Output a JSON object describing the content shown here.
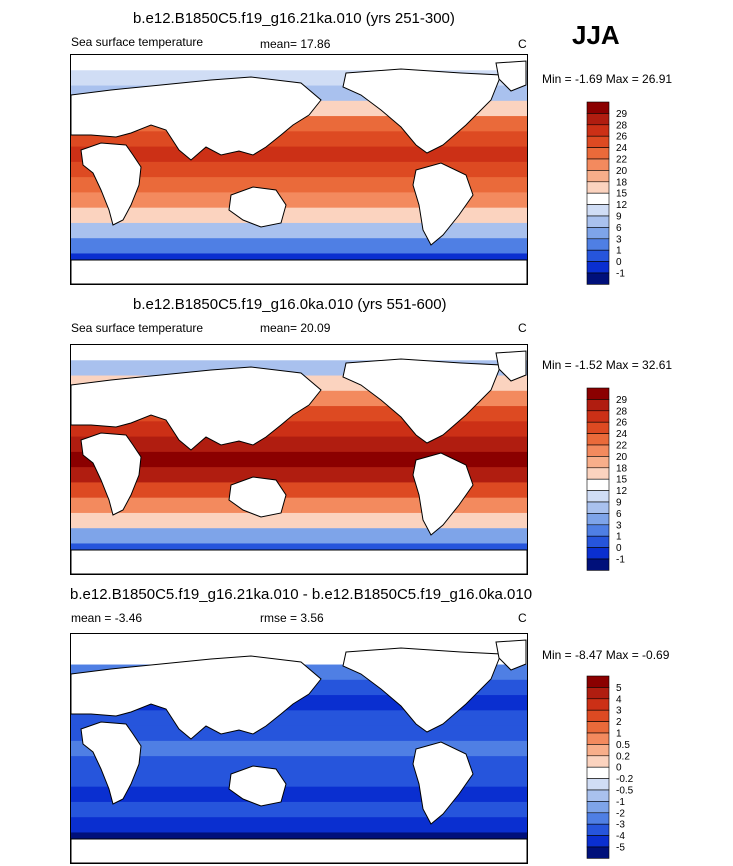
{
  "season": "JJA",
  "panels": [
    {
      "title": "b.e12.B1850C5.f19_g16.21ka.010 (yrs 251-300)",
      "variable": "Sea surface temperature",
      "stat1": "mean=  17.86",
      "stat2": "",
      "units": "C",
      "minmax": "Min =  -1.69 Max =  26.91"
    },
    {
      "title": "b.e12.B1850C5.f19_g16.0ka.010 (yrs 551-600)",
      "variable": "Sea surface temperature",
      "stat1": "mean=  20.09",
      "stat2": "",
      "units": "C",
      "minmax": "Min =  -1.52 Max =  32.61"
    },
    {
      "title": "b.e12.B1850C5.f19_g16.21ka.010 - b.e12.B1850C5.f19_g16.0ka.010",
      "variable": "mean =  -3.46",
      "stat1": "rmse =   3.56",
      "stat2": "",
      "units": "C",
      "minmax": "Min =  -8.47 Max =  -0.69"
    }
  ],
  "chart_data": [
    {
      "type": "heatmap",
      "title": "b.e12.B1850C5.f19_g16.21ka.010 (yrs 251-300)",
      "variable": "Sea surface temperature",
      "units": "C",
      "mean": 17.86,
      "min": -1.69,
      "max": 26.91,
      "colorbar_levels": [
        "29",
        "28",
        "26",
        "24",
        "22",
        "20",
        "18",
        "15",
        "12",
        "9",
        "6",
        "3",
        "1",
        "0",
        "-1"
      ],
      "colors": [
        "#8b0000",
        "#b01d10",
        "#cc3016",
        "#dd4a22",
        "#ea6a3a",
        "#f38a5e",
        "#f8ae8a",
        "#fbd3bf",
        "#ffffff",
        "#d0ddf5",
        "#a9c1ee",
        "#7ea4e9",
        "#4f7fe4",
        "#2655dc",
        "#0a2fd0",
        "#00107a"
      ],
      "gridlines": false
    },
    {
      "type": "heatmap",
      "title": "b.e12.B1850C5.f19_g16.0ka.010 (yrs 551-600)",
      "variable": "Sea surface temperature",
      "units": "C",
      "mean": 20.09,
      "min": -1.52,
      "max": 32.61,
      "colorbar_levels": [
        "29",
        "28",
        "26",
        "24",
        "22",
        "20",
        "18",
        "15",
        "12",
        "9",
        "6",
        "3",
        "1",
        "0",
        "-1"
      ],
      "colors": [
        "#8b0000",
        "#b01d10",
        "#cc3016",
        "#dd4a22",
        "#ea6a3a",
        "#f38a5e",
        "#f8ae8a",
        "#fbd3bf",
        "#ffffff",
        "#d0ddf5",
        "#a9c1ee",
        "#7ea4e9",
        "#4f7fe4",
        "#2655dc",
        "#0a2fd0",
        "#00107a"
      ],
      "gridlines": false
    },
    {
      "type": "heatmap",
      "title": "b.e12.B1850C5.f19_g16.21ka.010 - b.e12.B1850C5.f19_g16.0ka.010",
      "units": "C",
      "mean": -3.46,
      "rmse": 3.56,
      "min": -8.47,
      "max": -0.69,
      "colorbar_levels": [
        "5",
        "4",
        "3",
        "2",
        "1",
        "0.5",
        "0.2",
        "0",
        "-0.2",
        "-0.5",
        "-1",
        "-2",
        "-3",
        "-4",
        "-5"
      ],
      "colors": [
        "#8b0000",
        "#b01d10",
        "#cc3016",
        "#dd4a22",
        "#ea6a3a",
        "#f38a5e",
        "#f8ae8a",
        "#fbd3bf",
        "#ffffff",
        "#d0ddf5",
        "#a9c1ee",
        "#7ea4e9",
        "#4f7fe4",
        "#2655dc",
        "#0a2fd0",
        "#00107a"
      ],
      "gridlines": false
    }
  ]
}
